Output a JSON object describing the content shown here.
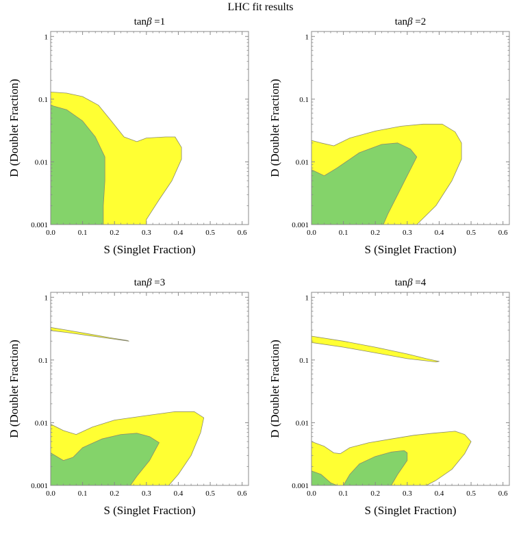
{
  "figure": {
    "title": "LHC fit results"
  },
  "colors": {
    "outer_region": "#ffff33",
    "inner_region": "#84d36a",
    "region_stroke": "#8a8a6a",
    "frame": "#888888"
  },
  "chart_data": [
    {
      "type": "area",
      "title": "tanβ =1",
      "title_prefix": "tan",
      "title_symbol": "β",
      "title_suffix": " =1",
      "xlabel": "S (Singlet Fraction)",
      "ylabel": "D (Doublet Fraction)",
      "xlim": [
        0,
        0.62
      ],
      "ylim": [
        0.001,
        1.2
      ],
      "yscale": "log",
      "xticks": [
        0,
        0.1,
        0.2,
        0.3,
        0.4,
        0.5,
        0.6
      ],
      "xtick_labels": [
        "0.0",
        "0.1",
        "0.2",
        "0.3",
        "0.4",
        "0.5",
        "0.6"
      ],
      "yticks": [
        0.001,
        0.01,
        0.1,
        1
      ],
      "ytick_labels": [
        "0.001",
        "0.01",
        "0.1",
        "1"
      ],
      "grid": false,
      "regions": [
        {
          "level": "outer",
          "points": [
            [
              0,
              0.13
            ],
            [
              0.05,
              0.125
            ],
            [
              0.1,
              0.11
            ],
            [
              0.15,
              0.08
            ],
            [
              0.19,
              0.045
            ],
            [
              0.23,
              0.025
            ],
            [
              0.27,
              0.021
            ],
            [
              0.3,
              0.024
            ],
            [
              0.36,
              0.025
            ],
            [
              0.39,
              0.025
            ],
            [
              0.41,
              0.017
            ],
            [
              0.41,
              0.011
            ],
            [
              0.38,
              0.005
            ],
            [
              0.34,
              0.0025
            ],
            [
              0.3,
              0.0012
            ],
            [
              0.3,
              0.001
            ],
            [
              0,
              0.001
            ]
          ]
        },
        {
          "level": "inner",
          "points": [
            [
              0,
              0.08
            ],
            [
              0.05,
              0.068
            ],
            [
              0.1,
              0.045
            ],
            [
              0.14,
              0.025
            ],
            [
              0.17,
              0.012
            ],
            [
              0.17,
              0.005
            ],
            [
              0.165,
              0.002
            ],
            [
              0.165,
              0.001
            ],
            [
              0,
              0.001
            ]
          ]
        }
      ]
    },
    {
      "type": "area",
      "title": "tanβ =2",
      "title_prefix": "tan",
      "title_symbol": "β",
      "title_suffix": " =2",
      "xlabel": "S (Singlet Fraction)",
      "ylabel": "D (Doublet Fraction)",
      "xlim": [
        0,
        0.62
      ],
      "ylim": [
        0.001,
        1.2
      ],
      "yscale": "log",
      "xticks": [
        0,
        0.1,
        0.2,
        0.3,
        0.4,
        0.5,
        0.6
      ],
      "xtick_labels": [
        "0.0",
        "0.1",
        "0.2",
        "0.3",
        "0.4",
        "0.5",
        "0.6"
      ],
      "yticks": [
        0.001,
        0.01,
        0.1,
        1
      ],
      "ytick_labels": [
        "0.001",
        "0.01",
        "0.1",
        "1"
      ],
      "grid": false,
      "regions": [
        {
          "level": "outer",
          "points": [
            [
              0,
              0.022
            ],
            [
              0.03,
              0.02
            ],
            [
              0.07,
              0.018
            ],
            [
              0.12,
              0.024
            ],
            [
              0.2,
              0.031
            ],
            [
              0.28,
              0.037
            ],
            [
              0.35,
              0.04
            ],
            [
              0.41,
              0.04
            ],
            [
              0.45,
              0.03
            ],
            [
              0.47,
              0.02
            ],
            [
              0.47,
              0.011
            ],
            [
              0.44,
              0.005
            ],
            [
              0.39,
              0.002
            ],
            [
              0.33,
              0.001
            ],
            [
              0,
              0.001
            ]
          ]
        },
        {
          "level": "inner",
          "points": [
            [
              0,
              0.0075
            ],
            [
              0.04,
              0.006
            ],
            [
              0.08,
              0.008
            ],
            [
              0.15,
              0.014
            ],
            [
              0.22,
              0.019
            ],
            [
              0.27,
              0.02
            ],
            [
              0.31,
              0.016
            ],
            [
              0.33,
              0.012
            ],
            [
              0.3,
              0.006
            ],
            [
              0.27,
              0.003
            ],
            [
              0.24,
              0.0015
            ],
            [
              0.225,
              0.001
            ],
            [
              0,
              0.001
            ]
          ]
        }
      ]
    },
    {
      "type": "area",
      "title": "tanβ =3",
      "title_prefix": "tan",
      "title_symbol": "β",
      "title_suffix": " =3",
      "xlabel": "S (Singlet Fraction)",
      "ylabel": "D (Doublet Fraction)",
      "xlim": [
        0,
        0.62
      ],
      "ylim": [
        0.001,
        1.2
      ],
      "yscale": "log",
      "xticks": [
        0,
        0.1,
        0.2,
        0.3,
        0.4,
        0.5,
        0.6
      ],
      "xtick_labels": [
        "0.0",
        "0.1",
        "0.2",
        "0.3",
        "0.4",
        "0.5",
        "0.6"
      ],
      "yticks": [
        0.001,
        0.01,
        0.1,
        1
      ],
      "ytick_labels": [
        "0.001",
        "0.01",
        "0.1",
        "1"
      ],
      "grid": false,
      "regions": [
        {
          "level": "outer",
          "points": [
            [
              0,
              0.33
            ],
            [
              0.05,
              0.3
            ],
            [
              0.12,
              0.26
            ],
            [
              0.19,
              0.225
            ],
            [
              0.24,
              0.205
            ],
            [
              0.245,
              0.2
            ],
            [
              0.2,
              0.215
            ],
            [
              0.12,
              0.245
            ],
            [
              0.05,
              0.275
            ],
            [
              0,
              0.295
            ]
          ]
        },
        {
          "level": "outer",
          "points": [
            [
              0,
              0.0095
            ],
            [
              0.04,
              0.0075
            ],
            [
              0.08,
              0.0065
            ],
            [
              0.13,
              0.0085
            ],
            [
              0.2,
              0.011
            ],
            [
              0.3,
              0.013
            ],
            [
              0.39,
              0.015
            ],
            [
              0.45,
              0.015
            ],
            [
              0.48,
              0.012
            ],
            [
              0.47,
              0.007
            ],
            [
              0.44,
              0.003
            ],
            [
              0.4,
              0.0015
            ],
            [
              0.37,
              0.001
            ],
            [
              0,
              0.001
            ]
          ]
        },
        {
          "level": "inner",
          "points": [
            [
              0,
              0.0033
            ],
            [
              0.04,
              0.0025
            ],
            [
              0.07,
              0.0028
            ],
            [
              0.1,
              0.004
            ],
            [
              0.16,
              0.0055
            ],
            [
              0.22,
              0.0065
            ],
            [
              0.27,
              0.0068
            ],
            [
              0.31,
              0.006
            ],
            [
              0.34,
              0.0048
            ],
            [
              0.31,
              0.0025
            ],
            [
              0.27,
              0.0014
            ],
            [
              0.25,
              0.001
            ],
            [
              0,
              0.001
            ]
          ]
        }
      ]
    },
    {
      "type": "area",
      "title": "tanβ =4",
      "title_prefix": "tan",
      "title_symbol": "β",
      "title_suffix": " =4",
      "xlabel": "S (Singlet Fraction)",
      "ylabel": "D (Doublet Fraction)",
      "xlim": [
        0,
        0.62
      ],
      "ylim": [
        0.001,
        1.2
      ],
      "yscale": "log",
      "xticks": [
        0,
        0.1,
        0.2,
        0.3,
        0.4,
        0.5,
        0.6
      ],
      "xtick_labels": [
        "0.0",
        "0.1",
        "0.2",
        "0.3",
        "0.4",
        "0.5",
        "0.6"
      ],
      "yticks": [
        0.001,
        0.01,
        0.1,
        1
      ],
      "ytick_labels": [
        "0.001",
        "0.01",
        "0.1",
        "1"
      ],
      "grid": false,
      "regions": [
        {
          "level": "outer",
          "points": [
            [
              0,
              0.24
            ],
            [
              0.1,
              0.2
            ],
            [
              0.2,
              0.16
            ],
            [
              0.3,
              0.125
            ],
            [
              0.36,
              0.105
            ],
            [
              0.4,
              0.095
            ],
            [
              0.39,
              0.093
            ],
            [
              0.3,
              0.105
            ],
            [
              0.2,
              0.13
            ],
            [
              0.1,
              0.16
            ],
            [
              0,
              0.19
            ]
          ]
        },
        {
          "level": "outer",
          "points": [
            [
              0,
              0.005
            ],
            [
              0.04,
              0.0042
            ],
            [
              0.07,
              0.0033
            ],
            [
              0.09,
              0.0032
            ],
            [
              0.12,
              0.004
            ],
            [
              0.18,
              0.0048
            ],
            [
              0.25,
              0.0055
            ],
            [
              0.32,
              0.0063
            ],
            [
              0.38,
              0.0068
            ],
            [
              0.45,
              0.0073
            ],
            [
              0.48,
              0.0065
            ],
            [
              0.5,
              0.005
            ],
            [
              0.48,
              0.0032
            ],
            [
              0.44,
              0.0018
            ],
            [
              0.39,
              0.0012
            ],
            [
              0.36,
              0.001
            ],
            [
              0,
              0.001
            ]
          ]
        },
        {
          "level": "inner",
          "points": [
            [
              0,
              0.0017
            ],
            [
              0.03,
              0.0015
            ],
            [
              0.06,
              0.0011
            ],
            [
              0.08,
              0.001
            ],
            [
              0,
              0.001
            ]
          ]
        },
        {
          "level": "inner",
          "points": [
            [
              0.1,
              0.001
            ],
            [
              0.12,
              0.0015
            ],
            [
              0.15,
              0.0022
            ],
            [
              0.2,
              0.0029
            ],
            [
              0.25,
              0.0034
            ],
            [
              0.29,
              0.0036
            ],
            [
              0.3,
              0.0033
            ],
            [
              0.3,
              0.0025
            ],
            [
              0.27,
              0.0015
            ],
            [
              0.25,
              0.001
            ]
          ]
        }
      ]
    }
  ]
}
